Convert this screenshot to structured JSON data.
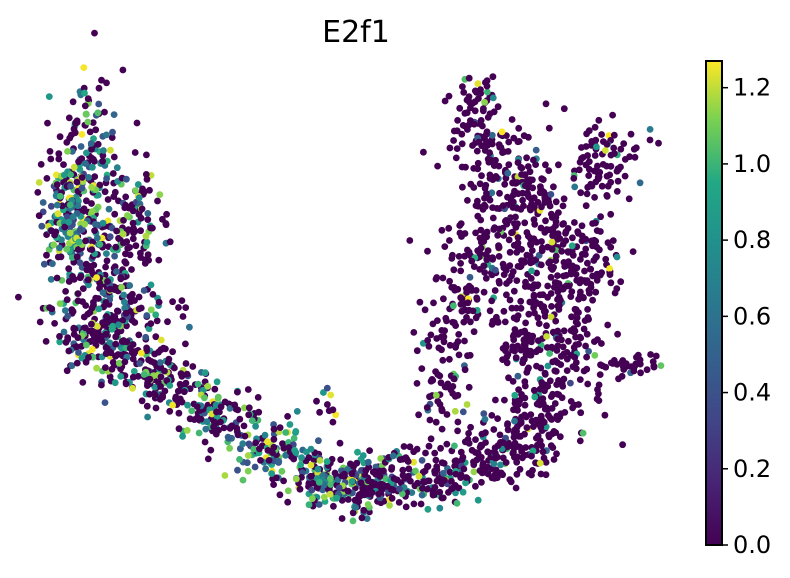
{
  "chart_data": {
    "type": "scatter",
    "title": "E2f1",
    "xlabel": "",
    "ylabel": "",
    "axes_visible": false,
    "colormap": "viridis",
    "colorbar": {
      "range": [
        0.0,
        1.27
      ],
      "ticks": [
        0.0,
        0.2,
        0.4,
        0.6,
        0.8,
        1.0,
        1.2
      ],
      "tick_labels": [
        "0.0",
        "0.2",
        "0.4",
        "0.6",
        "0.8",
        "1.0",
        "1.2"
      ],
      "placement": "right"
    },
    "xlim": [
      0,
      100
    ],
    "ylim": [
      0,
      100
    ],
    "low_color": "#440154",
    "approx_point_count": 2600,
    "high_expression_regions": [
      "left arm (x 0-20, y 50-80)",
      "lower bend (x 25-55, y 5-30)"
    ]
  }
}
